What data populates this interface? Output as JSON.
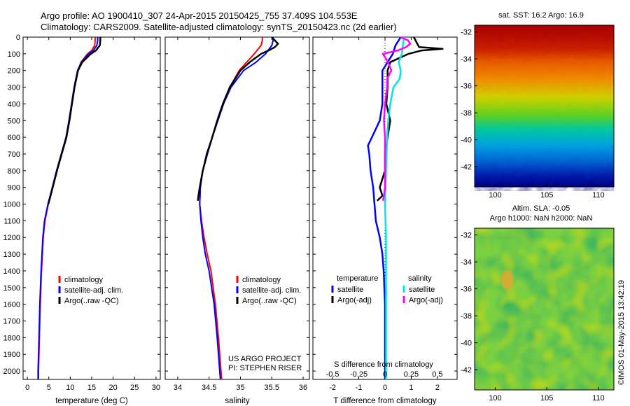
{
  "header": {
    "line1": "Argo profile: AO 1900410_307 24-Apr-2015 20150425_755 37.409S 104.553E",
    "line2": "Climatology: CARS2009. Satellite-adjusted climatology: synTS_20150423.nc (2d earlier)"
  },
  "colors": {
    "climatology": "#ff0000",
    "satellite": "#0000ff",
    "argo": "#000000",
    "sal_satellite": "#00e6e6",
    "sal_argo": "#ff00ff"
  },
  "chart_data": [
    {
      "type": "line",
      "panel": "temperature",
      "xlabel": "temperature (deg C)",
      "xlim": [
        -1,
        31
      ],
      "xticks": [
        0,
        5,
        10,
        15,
        20,
        25,
        30
      ],
      "ylim": [
        2050,
        0
      ],
      "yticks": [
        0,
        100,
        200,
        300,
        400,
        500,
        600,
        700,
        800,
        900,
        1000,
        1100,
        1200,
        1300,
        1400,
        1500,
        1600,
        1700,
        1800,
        1900,
        2000
      ],
      "depth": [
        0,
        50,
        100,
        150,
        200,
        300,
        400,
        500,
        600,
        700,
        800,
        900,
        1000,
        1100,
        1200,
        1400,
        1600,
        1800,
        2000,
        2050
      ],
      "legend": [
        "climatology",
        "satellite-adj. clim.",
        "Argo(..raw -QC)"
      ],
      "series": [
        {
          "name": "climatology",
          "depth": [
            0,
            20,
            50,
            80,
            100,
            150,
            200,
            300,
            400,
            500,
            600,
            700,
            800,
            900,
            1000,
            1100,
            1200,
            1400,
            1600,
            1800,
            2000,
            2050
          ],
          "values": [
            15.8,
            15.8,
            15.7,
            15.0,
            14.0,
            12.5,
            11.8,
            11.0,
            10.4,
            9.8,
            9.1,
            8.0,
            6.9,
            5.9,
            4.9,
            4.1,
            3.7,
            3.3,
            3.0,
            2.8,
            2.6,
            2.6
          ]
        },
        {
          "name": "satellite-adj. clim.",
          "depth": [
            0,
            20,
            50,
            80,
            100,
            150,
            200,
            300,
            400,
            500,
            600,
            700,
            800,
            900,
            1000,
            1100,
            1200,
            1400,
            1600,
            1800,
            2000,
            2050
          ],
          "values": [
            16.4,
            16.4,
            16.2,
            15.4,
            14.3,
            12.6,
            11.7,
            10.9,
            10.3,
            9.7,
            9.0,
            7.9,
            6.8,
            5.8,
            4.8,
            4.0,
            3.6,
            3.2,
            2.9,
            2.7,
            2.5,
            2.5
          ]
        },
        {
          "name": "Argo(..raw -QC)",
          "depth": [
            0,
            20,
            50,
            80,
            100,
            150,
            200,
            300,
            400,
            500,
            600,
            700,
            800,
            900,
            1000
          ],
          "values": [
            17.0,
            17.0,
            16.9,
            16.0,
            14.8,
            12.8,
            11.8,
            11.0,
            10.4,
            9.8,
            9.1,
            8.0,
            6.9,
            5.9,
            4.9
          ]
        }
      ]
    },
    {
      "type": "line",
      "panel": "salinity",
      "xlabel": "salinity",
      "xlim": [
        33.8,
        36.1
      ],
      "xticks": [
        34,
        34.5,
        35,
        35.5,
        36
      ],
      "xtick_labels": [
        "34",
        "34.5",
        "35",
        "35.5",
        "36"
      ],
      "ylim": [
        2050,
        0
      ],
      "legend": [
        "climatology",
        "satellite-adj. clim.",
        "Argo(..raw -QC)"
      ],
      "annotation": [
        "US ARGO PROJECT",
        "PI: STEPHEN RISER"
      ],
      "series": [
        {
          "name": "climatology",
          "depth": [
            0,
            20,
            50,
            100,
            150,
            200,
            300,
            400,
            500,
            600,
            700,
            800,
            900,
            1000,
            1100,
            1200,
            1300,
            1400,
            1600,
            1800,
            2000,
            2050
          ],
          "values": [
            35.35,
            35.35,
            35.33,
            35.22,
            35.1,
            34.98,
            34.83,
            34.73,
            34.64,
            34.55,
            34.46,
            34.4,
            34.36,
            34.35,
            34.38,
            34.42,
            34.47,
            34.53,
            34.6,
            34.65,
            34.69,
            34.7
          ]
        },
        {
          "name": "satellite-adj. clim.",
          "depth": [
            0,
            20,
            50,
            100,
            150,
            200,
            300,
            400,
            500,
            600,
            700,
            800,
            900,
            1000,
            1100,
            1200,
            1300,
            1400,
            1600,
            1800,
            2000,
            2050
          ],
          "values": [
            35.52,
            35.52,
            35.5,
            35.4,
            35.25,
            35.05,
            34.85,
            34.73,
            34.64,
            34.55,
            34.46,
            34.4,
            34.36,
            34.35,
            34.37,
            34.4,
            34.44,
            34.5,
            34.58,
            34.63,
            34.67,
            34.68
          ]
        },
        {
          "name": "Argo(..raw -QC)",
          "depth": [
            0,
            20,
            40,
            60,
            80,
            100,
            150,
            200,
            300,
            400,
            500,
            600,
            700,
            800,
            900,
            950,
            980
          ],
          "values": [
            35.5,
            35.55,
            35.6,
            35.55,
            35.45,
            35.33,
            35.15,
            35.0,
            34.83,
            34.72,
            34.63,
            34.55,
            34.47,
            34.4,
            34.35,
            34.33,
            34.32
          ]
        }
      ]
    },
    {
      "type": "line",
      "panel": "differences",
      "xlabel": "T difference from climatology",
      "xlim": [
        -2.75,
        2.75
      ],
      "xticks": [
        -2,
        -1,
        0,
        1,
        2
      ],
      "xtick_labels": [
        "-2",
        "-1",
        "0",
        "1",
        "2"
      ],
      "top_axis_label": "S difference from climatology",
      "top_ticks": [
        "-0.5",
        "-0.25",
        "0",
        "0.25",
        "0.5"
      ],
      "ylim": [
        2050,
        0
      ],
      "legend_headers": [
        "temperature",
        "salinity"
      ],
      "legend": [
        "satellite",
        "Argo(-adj)",
        "satellite",
        "Argo(-adj)"
      ],
      "series": [
        {
          "name": "satellite",
          "group": "temperature",
          "depth": [
            0,
            50,
            100,
            150,
            200,
            300,
            400,
            500,
            600,
            650,
            700,
            800,
            900,
            1000,
            1100,
            1200,
            1300,
            1400,
            1600,
            1800,
            2000,
            2050
          ],
          "values": [
            0.6,
            0.4,
            0.3,
            0.1,
            -0.1,
            -0.1,
            -0.1,
            -0.2,
            -0.5,
            -0.65,
            -0.6,
            -0.55,
            -0.45,
            -0.4,
            -0.35,
            -0.2,
            -0.1,
            -0.05,
            0,
            0,
            0,
            0
          ]
        },
        {
          "name": "Argo(-adj)",
          "group": "temperature",
          "depth": [
            0,
            30,
            60,
            70,
            80,
            100,
            150,
            200,
            300,
            400,
            500,
            600,
            700,
            800,
            900,
            950,
            980
          ],
          "values": [
            1.1,
            1.2,
            1.3,
            2.2,
            1.4,
            0.9,
            0.2,
            0.1,
            0.1,
            0.05,
            0.2,
            0.1,
            0,
            0,
            -0.2,
            -0.1,
            -0.3
          ]
        },
        {
          "name": "satellite",
          "group": "salinity",
          "depth": [
            0,
            50,
            100,
            150,
            200,
            250,
            300,
            400,
            500,
            600,
            800,
            1000,
            1200,
            1400,
            1600,
            1800,
            2000,
            2050
          ],
          "values": [
            0.18,
            0.17,
            0.16,
            0.13,
            0.15,
            0.14,
            0.08,
            0.05,
            0.03,
            0.02,
            0.01,
            0,
            0.01,
            0.01,
            0.01,
            0.01,
            0.01,
            0.01
          ]
        },
        {
          "name": "Argo(-adj)",
          "group": "salinity",
          "depth": [
            0,
            20,
            40,
            60,
            80,
            100,
            150,
            200,
            250,
            300,
            350,
            400,
            500,
            600,
            700,
            800,
            900,
            950,
            980
          ],
          "values": [
            0.15,
            0.22,
            0.24,
            0.2,
            0.12,
            -0.02,
            0.03,
            0.06,
            0.02,
            0.02,
            0.01,
            0,
            -0.01,
            0,
            0,
            0,
            0,
            -0.01,
            -0.02
          ]
        }
      ]
    },
    {
      "type": "heatmap",
      "panel": "sst-map",
      "title": "sat. SST: 16.2 Argo: 16.9",
      "xticks": [
        "100",
        "105",
        "110"
      ],
      "yticks": [
        "-32",
        "-34",
        "-36",
        "-38",
        "-40",
        "-42"
      ],
      "xlim": [
        98,
        111.5
      ],
      "ylim": [
        -43.5,
        -31.5
      ]
    },
    {
      "type": "heatmap",
      "panel": "sla-map",
      "title": "Altim. SLA: -0.05",
      "subtitle": "Argo h1000: NaN h2000: NaN",
      "xticks": [
        "100",
        "105",
        "110"
      ],
      "yticks": [
        "-32",
        "-34",
        "-36",
        "-38",
        "-40",
        "-42"
      ],
      "xlim": [
        98,
        111.5
      ],
      "ylim": [
        -43.5,
        -31.5
      ]
    }
  ],
  "watermark": "©IMOS 01-May-2015 13:42:19"
}
